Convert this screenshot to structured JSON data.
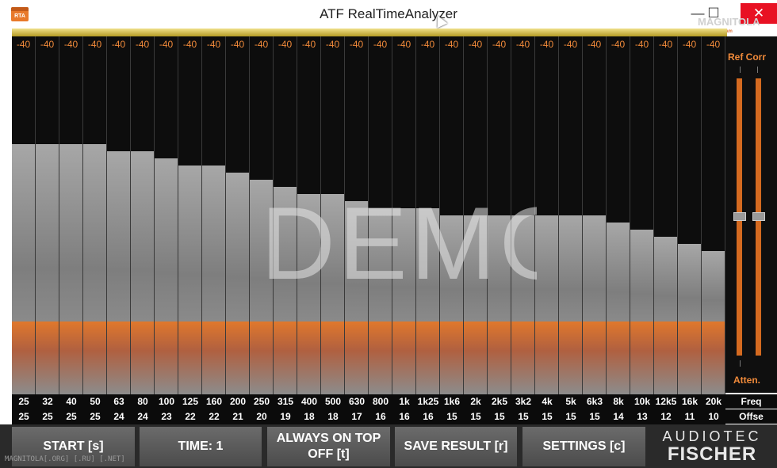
{
  "window": {
    "title": "ATF RealTimeAnalyzer",
    "icon_text": "RTA",
    "minimize": "—",
    "maximize": "☐",
    "close": "✕"
  },
  "analyzer": {
    "watermark": "DEMO",
    "bands": [
      {
        "freq": "25",
        "offset": "25",
        "peak": "-40",
        "level": 0.7
      },
      {
        "freq": "32",
        "offset": "25",
        "peak": "-40",
        "level": 0.7
      },
      {
        "freq": "40",
        "offset": "25",
        "peak": "-40",
        "level": 0.7
      },
      {
        "freq": "50",
        "offset": "25",
        "peak": "-40",
        "level": 0.7
      },
      {
        "freq": "63",
        "offset": "24",
        "peak": "-40",
        "level": 0.68
      },
      {
        "freq": "80",
        "offset": "24",
        "peak": "-40",
        "level": 0.68
      },
      {
        "freq": "100",
        "offset": "23",
        "peak": "-40",
        "level": 0.66
      },
      {
        "freq": "125",
        "offset": "22",
        "peak": "-40",
        "level": 0.64
      },
      {
        "freq": "160",
        "offset": "22",
        "peak": "-40",
        "level": 0.64
      },
      {
        "freq": "200",
        "offset": "21",
        "peak": "-40",
        "level": 0.62
      },
      {
        "freq": "250",
        "offset": "20",
        "peak": "-40",
        "level": 0.6
      },
      {
        "freq": "315",
        "offset": "19",
        "peak": "-40",
        "level": 0.58
      },
      {
        "freq": "400",
        "offset": "18",
        "peak": "-40",
        "level": 0.56
      },
      {
        "freq": "500",
        "offset": "18",
        "peak": "-40",
        "level": 0.56
      },
      {
        "freq": "630",
        "offset": "17",
        "peak": "-40",
        "level": 0.54
      },
      {
        "freq": "800",
        "offset": "16",
        "peak": "-40",
        "level": 0.52
      },
      {
        "freq": "1k",
        "offset": "16",
        "peak": "-40",
        "level": 0.52
      },
      {
        "freq": "1k25",
        "offset": "16",
        "peak": "-40",
        "level": 0.52
      },
      {
        "freq": "1k6",
        "offset": "15",
        "peak": "-40",
        "level": 0.5
      },
      {
        "freq": "2k",
        "offset": "15",
        "peak": "-40",
        "level": 0.5
      },
      {
        "freq": "2k5",
        "offset": "15",
        "peak": "-40",
        "level": 0.5
      },
      {
        "freq": "3k2",
        "offset": "15",
        "peak": "-40",
        "level": 0.5
      },
      {
        "freq": "4k",
        "offset": "15",
        "peak": "-40",
        "level": 0.5
      },
      {
        "freq": "5k",
        "offset": "15",
        "peak": "-40",
        "level": 0.5
      },
      {
        "freq": "6k3",
        "offset": "15",
        "peak": "-40",
        "level": 0.5
      },
      {
        "freq": "8k",
        "offset": "14",
        "peak": "-40",
        "level": 0.48
      },
      {
        "freq": "10k",
        "offset": "13",
        "peak": "-40",
        "level": 0.46
      },
      {
        "freq": "12k5",
        "offset": "12",
        "peak": "-40",
        "level": 0.44
      },
      {
        "freq": "16k",
        "offset": "11",
        "peak": "-40",
        "level": 0.42
      },
      {
        "freq": "20k",
        "offset": "10",
        "peak": "-40",
        "level": 0.4
      }
    ],
    "row_labels": {
      "freq": "Freq",
      "offset": "Offse"
    }
  },
  "right_panel": {
    "ref_corr_label": "Ref Corr",
    "atten_label": "Atten.",
    "slider_left_level": 0.5,
    "slider_right_level": 0.5
  },
  "toolbar": {
    "start": "START [s]",
    "time": "TIME:  1",
    "always_on_top_line1": "ALWAYS ON TOP",
    "always_on_top_line2": "OFF [t]",
    "save_result": "SAVE RESULT [r]",
    "settings": "SETTINGS [c]",
    "logo_line1": "AUDIOTEC",
    "logo_line2": "FISCHER"
  },
  "watermarks": {
    "bottom_left": "MAGNITOLA[.ORG] [.RU] [.NET]",
    "top_right": "MAGNITOLA",
    "top_right_small": "CarAudio Team"
  },
  "colors": {
    "accent_orange": "#f08a3a",
    "close_red": "#e81123"
  }
}
